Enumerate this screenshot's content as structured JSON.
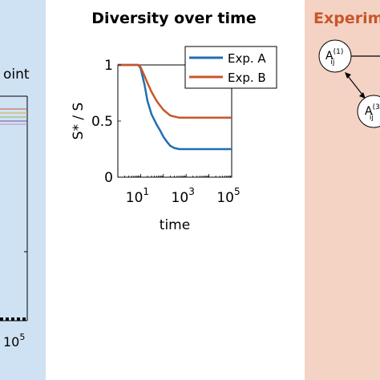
{
  "colors": {
    "left_panel_bg": "#cfe2f3",
    "right_panel_bg": "#f4d3c4",
    "exp_a": "#1f6fb4",
    "exp_b": "#c8562a",
    "right_title": "#c8562a"
  },
  "left_panel": {
    "title_fragment": "oint",
    "x_tick_label": "10",
    "x_tick_exp": "5"
  },
  "middle_panel": {
    "title": "Diversity over time"
  },
  "right_panel": {
    "title_fragment": "Experim",
    "node1": {
      "base": "A",
      "sub": "ij",
      "sup": "(1)"
    },
    "node3": {
      "base": "A",
      "sub": "ij",
      "sup": "(3"
    }
  },
  "chart_data": {
    "type": "line",
    "title": "Diversity over time",
    "xlabel": "time",
    "ylabel": "S* / S",
    "xscale": "log",
    "xlim": [
      1,
      100000
    ],
    "ylim": [
      0,
      1
    ],
    "x_ticks": [
      {
        "base": "10",
        "exp": "1",
        "value": 10
      },
      {
        "base": "10",
        "exp": "3",
        "value": 1000
      },
      {
        "base": "10",
        "exp": "5",
        "value": 100000
      }
    ],
    "y_ticks": [
      {
        "label": "0",
        "value": 0
      },
      {
        "label": "0.5",
        "value": 0.5
      },
      {
        "label": "1",
        "value": 1
      }
    ],
    "legend": "top-right",
    "series": [
      {
        "name": "Exp. A",
        "color": "#1f6fb4",
        "x": [
          1,
          8,
          10,
          15,
          20,
          30,
          50,
          70,
          100,
          150,
          200,
          300,
          500,
          1000,
          100000
        ],
        "y": [
          1,
          1,
          0.97,
          0.82,
          0.68,
          0.56,
          0.47,
          0.42,
          0.36,
          0.31,
          0.28,
          0.26,
          0.25,
          0.25,
          0.25
        ]
      },
      {
        "name": "Exp. B",
        "color": "#c8562a",
        "x": [
          1,
          8,
          10,
          15,
          20,
          30,
          50,
          70,
          100,
          150,
          200,
          300,
          500,
          1000,
          100000
        ],
        "y": [
          1,
          1,
          0.98,
          0.9,
          0.84,
          0.76,
          0.68,
          0.64,
          0.6,
          0.57,
          0.55,
          0.54,
          0.53,
          0.53,
          0.53
        ]
      }
    ]
  }
}
